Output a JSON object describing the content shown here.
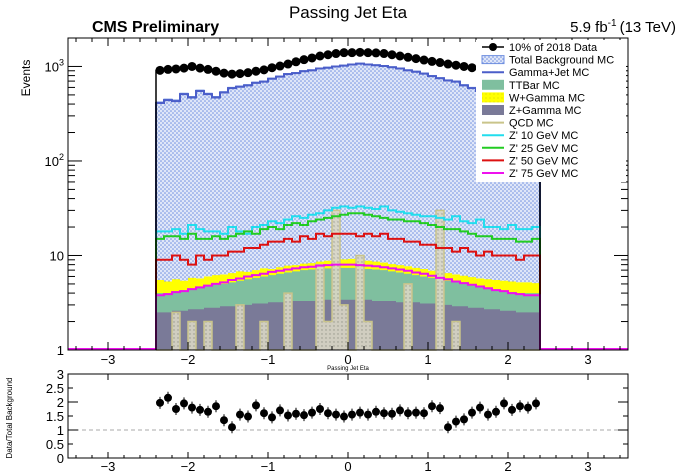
{
  "header": {
    "title": "Passing Jet Eta",
    "experiment": "CMS Preliminary",
    "lumi": "5.9 fb",
    "lumi_exp": "-1",
    "energy": "(13 TeV)"
  },
  "colors": {
    "data": "#000000",
    "total_bkg": "#6f8fe0",
    "gamma_jet": "#4b5ec9",
    "ttbar": "#7fbf9f",
    "wgamma": "#ffff00",
    "zgamma": "#7a7a98",
    "qcd": "#c9c48a",
    "zp10": "#22ddee",
    "zp25": "#22cc22",
    "zp50": "#dd1111",
    "zp75": "#ee11ee"
  },
  "chart_data": [
    {
      "type": "line",
      "title": "Passing Jet Eta",
      "xlabel": "Passing Jet Eta",
      "ylabel": "Events",
      "xlim": [
        -3.5,
        3.5
      ],
      "ylim": [
        1,
        2000
      ],
      "yscale": "log",
      "grid": false,
      "legend_position": "top-right",
      "x_ticks": [
        "−3",
        "−2",
        "−1",
        "0",
        "1",
        "2",
        "3"
      ],
      "y_ticks": [
        "1",
        "10",
        "10²",
        "10³"
      ],
      "bins": {
        "start": -2.4,
        "end": 2.4,
        "count": 48
      },
      "series": [
        {
          "name": "10% of 2018 Data",
          "key": "data",
          "style": "markers",
          "values": [
            910,
            930,
            940,
            960,
            1000,
            960,
            930,
            890,
            850,
            830,
            840,
            860,
            890,
            920,
            970,
            1010,
            1060,
            1120,
            1180,
            1230,
            1290,
            1330,
            1370,
            1400,
            1400,
            1410,
            1400,
            1390,
            1370,
            1330,
            1290,
            1250,
            1210,
            1170,
            1130,
            1100,
            1060,
            1030,
            1000,
            970,
            950,
            940,
            930,
            920,
            910,
            900,
            900,
            890
          ]
        },
        {
          "name": "Total Background MC",
          "key": "total_bkg",
          "style": "fill",
          "values": [
            420,
            450,
            440,
            520,
            480,
            560,
            520,
            480,
            540,
            600,
            620,
            640,
            680,
            700,
            750,
            790,
            840,
            860,
            900,
            920,
            960,
            980,
            1010,
            1030,
            1060,
            1080,
            1060,
            1040,
            1020,
            990,
            960,
            920,
            890,
            850,
            800,
            760,
            720,
            700,
            640,
            600,
            560,
            550,
            500,
            460,
            420,
            440,
            480,
            520
          ]
        },
        {
          "name": "Gamma+Jet MC",
          "key": "gamma_jet",
          "style": "step",
          "values": [
            410,
            440,
            430,
            510,
            470,
            550,
            510,
            470,
            530,
            590,
            610,
            630,
            670,
            690,
            740,
            780,
            830,
            850,
            890,
            910,
            950,
            970,
            1000,
            1020,
            1050,
            1070,
            1050,
            1030,
            1010,
            980,
            950,
            910,
            880,
            840,
            790,
            750,
            710,
            690,
            630,
            590,
            550,
            540,
            490,
            450,
            410,
            430,
            470,
            510
          ]
        },
        {
          "name": "TTBar MC",
          "key": "ttbar",
          "style": "fill",
          "values": [
            4.0,
            4.0,
            4.2,
            4.3,
            4.4,
            4.6,
            4.7,
            4.9,
            5.0,
            5.2,
            5.4,
            5.6,
            5.8,
            6.0,
            6.2,
            6.4,
            6.6,
            6.8,
            7.0,
            7.1,
            7.2,
            7.3,
            7.4,
            7.4,
            7.4,
            7.3,
            7.2,
            7.1,
            7.0,
            6.8,
            6.6,
            6.4,
            6.2,
            6.0,
            5.8,
            5.6,
            5.4,
            5.2,
            5.0,
            4.8,
            4.6,
            4.5,
            4.3,
            4.2,
            4.1,
            4.0,
            4.0,
            4.0
          ]
        },
        {
          "name": "W+Gamma MC",
          "key": "wgamma",
          "style": "fill",
          "values": [
            5.5,
            5.3,
            5.6,
            5.4,
            5.8,
            5.7,
            6.0,
            6.2,
            6.3,
            6.5,
            6.8,
            6.7,
            7.0,
            7.3,
            7.2,
            7.5,
            7.8,
            7.9,
            8.2,
            8.3,
            8.6,
            8.8,
            9.0,
            9.1,
            9.2,
            9.0,
            8.8,
            8.6,
            8.4,
            8.1,
            7.9,
            7.7,
            7.4,
            7.2,
            6.9,
            6.8,
            6.5,
            6.3,
            6.1,
            5.9,
            5.7,
            5.6,
            5.5,
            5.4,
            5.3,
            5.2,
            5.2,
            5.1
          ]
        },
        {
          "name": "Z+Gamma MC",
          "key": "zgamma",
          "style": "fill",
          "values": [
            2.5,
            2.5,
            2.6,
            2.6,
            2.7,
            2.7,
            2.8,
            2.8,
            2.9,
            2.9,
            3.0,
            3.0,
            3.1,
            3.1,
            3.2,
            3.2,
            3.3,
            3.3,
            3.3,
            3.3,
            3.4,
            3.4,
            3.4,
            3.4,
            3.4,
            3.4,
            3.4,
            3.3,
            3.3,
            3.3,
            3.2,
            3.2,
            3.2,
            3.1,
            3.1,
            3.0,
            3.0,
            2.9,
            2.9,
            2.8,
            2.8,
            2.7,
            2.7,
            2.6,
            2.6,
            2.5,
            2.5,
            2.5
          ]
        },
        {
          "name": "QCD MC",
          "key": "qcd",
          "style": "step",
          "values": [
            1,
            1,
            2.5,
            1,
            2,
            1,
            2,
            1,
            1,
            1,
            3,
            1,
            1,
            2,
            1,
            1,
            4,
            1,
            1,
            1,
            8,
            2,
            30,
            3,
            1,
            10,
            2,
            1,
            1,
            1,
            1,
            5,
            1,
            1,
            1,
            30,
            1,
            2,
            1,
            1,
            1,
            1,
            1,
            1,
            1,
            1,
            1,
            1
          ]
        },
        {
          "name": "Z' 10 GeV MC",
          "key": "zp10",
          "style": "step",
          "values": [
            18,
            18,
            19,
            17,
            21,
            19,
            18,
            18,
            17,
            20,
            18,
            17,
            20,
            21,
            23,
            22,
            24,
            26,
            25,
            27,
            28,
            30,
            32,
            33,
            32,
            33,
            32,
            31,
            33,
            30,
            29,
            28,
            27,
            26,
            26,
            25,
            24,
            26,
            23,
            22,
            24,
            20,
            20,
            19,
            21,
            19,
            19,
            20
          ]
        },
        {
          "name": "Z' 25 GeV MC",
          "key": "zp25",
          "style": "step",
          "values": [
            15,
            16,
            16,
            15,
            17,
            15,
            15,
            16,
            15,
            16,
            17,
            18,
            17,
            19,
            20,
            19,
            21,
            22,
            21,
            23,
            24,
            25,
            26,
            27,
            28,
            28,
            27,
            26,
            25,
            24,
            24,
            23,
            23,
            22,
            21,
            20,
            19,
            19,
            18,
            17,
            16,
            16,
            15,
            15,
            15,
            14,
            14,
            15
          ]
        },
        {
          "name": "Z' 50 GeV MC",
          "key": "zp50",
          "style": "step",
          "values": [
            9,
            9,
            10,
            9,
            8,
            10,
            9,
            10,
            10,
            11,
            11,
            12,
            12,
            13,
            14,
            14,
            15,
            14,
            16,
            15,
            17,
            16,
            17,
            17,
            17,
            16,
            17,
            16,
            17,
            15,
            15,
            14,
            14,
            13,
            13,
            12,
            12,
            11,
            12,
            11,
            10,
            11,
            10,
            10,
            10,
            9,
            10,
            10
          ]
        },
        {
          "name": "Z' 75 GeV MC",
          "key": "zp75",
          "style": "step",
          "values": [
            3.8,
            3.9,
            4.1,
            4.2,
            4.4,
            4.6,
            4.8,
            5.0,
            5.2,
            5.5,
            5.7,
            6.0,
            6.2,
            6.4,
            6.7,
            6.9,
            7.1,
            7.3,
            7.5,
            7.6,
            7.8,
            7.9,
            8.0,
            8.0,
            8.0,
            7.9,
            7.8,
            7.7,
            7.5,
            7.3,
            7.1,
            6.9,
            6.6,
            6.4,
            6.1,
            5.8,
            5.6,
            5.3,
            5.1,
            4.9,
            4.7,
            4.5,
            4.3,
            4.2,
            4.0,
            3.9,
            3.8,
            3.8
          ]
        }
      ]
    },
    {
      "type": "scatter",
      "xlabel": "",
      "ylabel": "Data/Total Background",
      "xlim": [
        -3.5,
        3.5
      ],
      "ylim": [
        0,
        3
      ],
      "x_ticks": [
        "−3",
        "−2",
        "−1",
        "0",
        "1",
        "2",
        "3"
      ],
      "y_ticks": [
        "0",
        "0.5",
        "1",
        "1.5",
        "2",
        "2.5",
        "3"
      ],
      "reference_line": 1,
      "series": [
        {
          "name": "",
          "key": "ratio",
          "x": [
            -2.35,
            -2.25,
            -2.15,
            -2.05,
            -1.95,
            -1.85,
            -1.75,
            -1.65,
            -1.55,
            -1.45,
            -1.35,
            -1.25,
            -1.15,
            -1.05,
            -0.95,
            -0.85,
            -0.75,
            -0.65,
            -0.55,
            -0.45,
            -0.35,
            -0.25,
            -0.15,
            -0.05,
            0.05,
            0.15,
            0.25,
            0.35,
            0.45,
            0.55,
            0.65,
            0.75,
            0.85,
            0.95,
            1.05,
            1.15,
            1.25,
            1.35,
            1.45,
            1.55,
            1.65,
            1.75,
            1.85,
            1.95,
            2.05,
            2.15,
            2.25,
            2.35
          ],
          "values": [
            1.97,
            2.15,
            1.75,
            1.95,
            1.8,
            1.72,
            1.65,
            1.85,
            1.35,
            1.1,
            1.55,
            1.48,
            1.88,
            1.6,
            1.45,
            1.7,
            1.52,
            1.58,
            1.53,
            1.62,
            1.75,
            1.6,
            1.55,
            1.48,
            1.55,
            1.62,
            1.55,
            1.65,
            1.6,
            1.58,
            1.7,
            1.6,
            1.62,
            1.6,
            1.85,
            1.78,
            1.1,
            1.3,
            1.38,
            1.62,
            1.8,
            1.55,
            1.65,
            1.95,
            1.72,
            1.85,
            1.8,
            1.95
          ]
        }
      ]
    }
  ]
}
